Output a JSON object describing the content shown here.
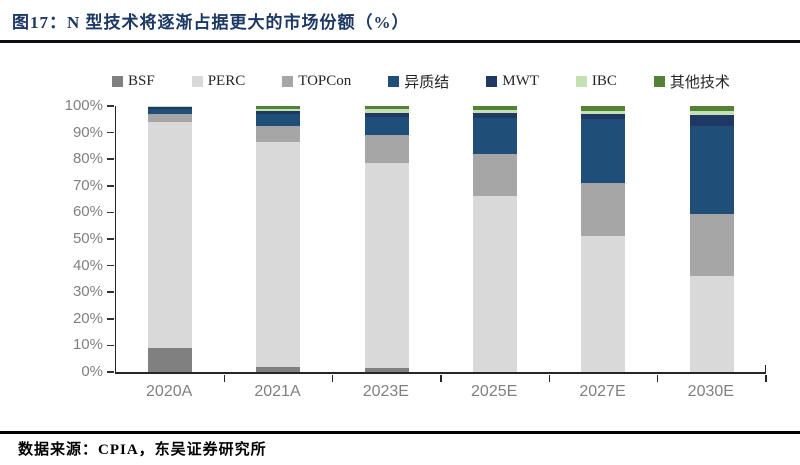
{
  "figure": {
    "title": "图17：N 型技术将逐渐占据更大的市场份额（%）",
    "source": "数据来源：CPIA，东吴证券研究所"
  },
  "appearance": {
    "title_color": "#1C3864",
    "axis_label_color": "#808080",
    "axis_line_color": "#262626",
    "background": "#FFFFFF"
  },
  "chart_data": {
    "type": "bar",
    "stacked": true,
    "stack_order": "series order is bottom-to-top",
    "title": "N 型技术将逐渐占据更大的市场份额（%）",
    "categories": [
      "2020A",
      "2021A",
      "2023E",
      "2025E",
      "2027E",
      "2030E"
    ],
    "series": [
      {
        "name": "BSF",
        "color": "#808080",
        "values": [
          9,
          2,
          1.5,
          0,
          0,
          0
        ]
      },
      {
        "name": "PERC",
        "color": "#D9D9D9",
        "values": [
          85,
          84.5,
          77,
          66,
          51,
          36
        ]
      },
      {
        "name": "TOPCon",
        "color": "#A6A6A6",
        "values": [
          3,
          6,
          10.5,
          16,
          20,
          23.5
        ]
      },
      {
        "name": "异质结",
        "color": "#1F4E79",
        "values": [
          2,
          4.5,
          7,
          13.5,
          24,
          33
        ]
      },
      {
        "name": "MWT",
        "color": "#1F3864",
        "values": [
          0.5,
          1,
          1.5,
          2,
          2,
          4
        ]
      },
      {
        "name": "IBC",
        "color": "#C5E0B4",
        "values": [
          0.5,
          1,
          1.5,
          1,
          1,
          1.5
        ]
      },
      {
        "name": "其他技术",
        "color": "#538135",
        "values": [
          0,
          1,
          1,
          1.5,
          2,
          2
        ]
      }
    ],
    "xlabel": "",
    "ylabel": "",
    "ylim": [
      0,
      100
    ],
    "yticks": [
      "0%",
      "10%",
      "20%",
      "30%",
      "40%",
      "50%",
      "60%",
      "70%",
      "80%",
      "90%",
      "100%"
    ],
    "grid": false,
    "legend_position": "top"
  }
}
